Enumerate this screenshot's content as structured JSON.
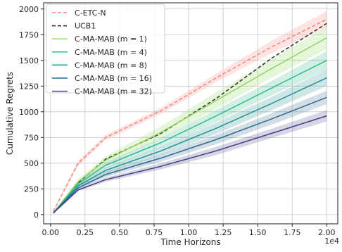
{
  "chart_data": {
    "type": "line",
    "xlabel": "Time Horizons",
    "ylabel": "Cumulative Regrets",
    "x_multiplier_label": "1e4",
    "xlim": [
      -0.05,
      2.08
    ],
    "ylim": [
      -90,
      2060
    ],
    "x_ticks": [
      0.0,
      0.25,
      0.5,
      0.75,
      1.0,
      1.25,
      1.5,
      1.75,
      2.0
    ],
    "x_tick_labels": [
      "0.00",
      "0.25",
      "0.50",
      "0.75",
      "1.00",
      "1.25",
      "1.50",
      "1.75",
      "2.00"
    ],
    "y_ticks": [
      0,
      250,
      500,
      750,
      1000,
      1250,
      1500,
      1750,
      2000
    ],
    "y_tick_labels": [
      "0",
      "250",
      "500",
      "750",
      "1000",
      "1250",
      "1500",
      "1750",
      "2000"
    ],
    "grid": true,
    "legend_position": "top-left",
    "x": [
      0.02,
      0.2,
      0.4,
      0.8,
      1.2,
      1.6,
      2.0
    ],
    "series": [
      {
        "name": "C-ETC-N",
        "color": "#f4867a",
        "dash": "dashed",
        "values": [
          30,
          500,
          750,
          1010,
          1330,
          1630,
          1900
        ],
        "band": [
          8,
          25,
          25,
          30,
          40,
          60,
          80
        ]
      },
      {
        "name": "UCB1",
        "color": "#2b2b2b",
        "dash": "dashed",
        "values": [
          15,
          310,
          540,
          790,
          1130,
          1520,
          1860
        ],
        "band": [
          0,
          0,
          0,
          0,
          0,
          0,
          0
        ]
      },
      {
        "name": "C-MA-MAB (m = 1)",
        "color": "#8ed45c",
        "dash": "solid",
        "values": [
          15,
          320,
          530,
          800,
          1110,
          1420,
          1720
        ],
        "band": [
          5,
          25,
          40,
          60,
          80,
          90,
          110
        ]
      },
      {
        "name": "C-MA-MAB (m = 4)",
        "color": "#34b88f",
        "dash": "solid",
        "values": [
          15,
          300,
          480,
          700,
          960,
          1230,
          1500
        ],
        "band": [
          5,
          20,
          30,
          45,
          60,
          70,
          90
        ]
      },
      {
        "name": "C-MA-MAB (m = 8)",
        "color": "#21918c",
        "dash": "solid",
        "values": [
          15,
          280,
          430,
          620,
          840,
          1080,
          1330
        ],
        "band": [
          5,
          18,
          28,
          40,
          55,
          65,
          80
        ]
      },
      {
        "name": "C-MA-MAB (m = 16)",
        "color": "#2f6a8e",
        "dash": "solid",
        "values": [
          15,
          260,
          390,
          550,
          730,
          930,
          1140
        ],
        "band": [
          5,
          15,
          25,
          35,
          45,
          55,
          65
        ]
      },
      {
        "name": "C-MA-MAB (m = 32)",
        "color": "#423f85",
        "dash": "solid",
        "values": [
          15,
          240,
          340,
          470,
          620,
          790,
          960
        ],
        "band": [
          5,
          12,
          20,
          30,
          40,
          45,
          55
        ]
      }
    ]
  }
}
